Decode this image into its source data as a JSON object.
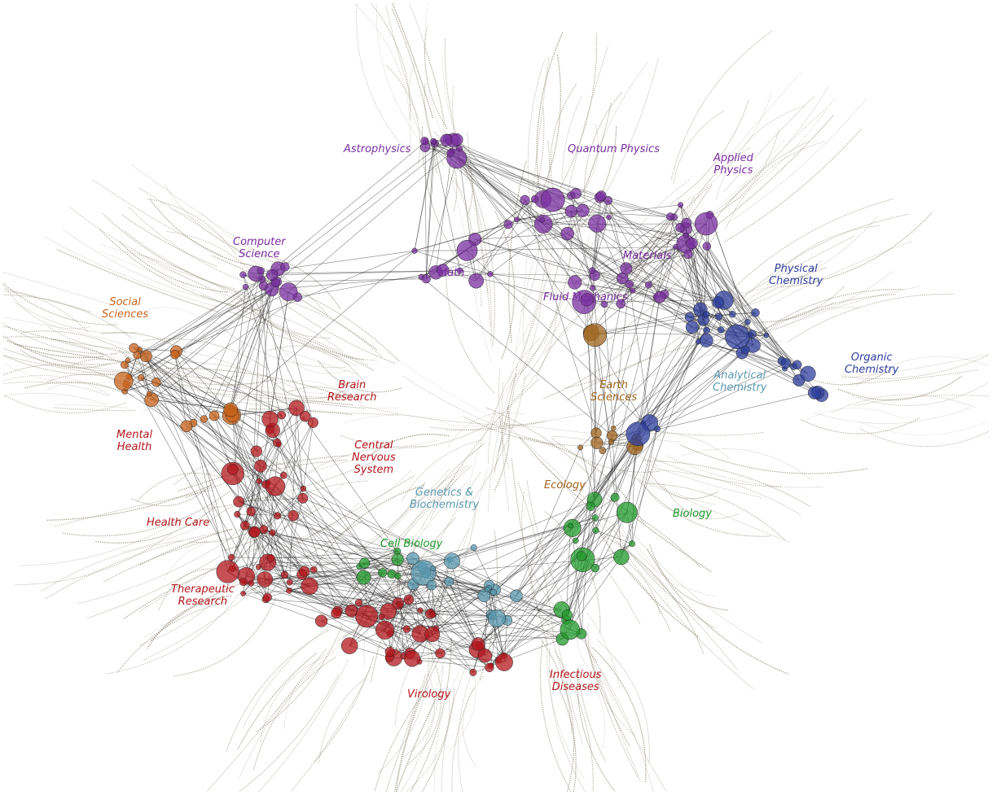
{
  "labels": {
    "astrophysics": "Astrophysics",
    "quantum_physics": "Quantum Physics",
    "applied_physics": "Applied\nPhysics",
    "computer_science": "Computer\nScience",
    "math": "Math",
    "materials": "Materials",
    "fluid_mechanics": "Fluid Mechanics",
    "physical_chemistry": "Physical\nChemistry",
    "organic_chemistry": "Organic\nChemistry",
    "social_sciences": "Social\nSciences",
    "brain_research": "Brain\nResearch",
    "earth_sciences": "Earth\nSciences",
    "analytical_chemistry": "Analytical\nChemistry",
    "mental_health": "Mental\nHealth",
    "central_nervous_system": "Central\nNervous\nSystem",
    "genetics_biochemistry": "Genetics &\nBiochemistry",
    "ecology": "Ecology",
    "biology": "Biology",
    "health_care": "Health Care",
    "cell_biology": "Cell Biology",
    "therapeutic_research": "Therapeutic\nResearch",
    "infectious_diseases": "Infectious\nDiseases",
    "virology": "Virology"
  },
  "colors": {
    "physics": "#7a2fa0",
    "chemistry": "#2e3f9e",
    "social": "#c8621a",
    "medical": "#b3171c",
    "biology": "#1f9a2a",
    "genetics": "#5a9ab0",
    "earth": "#a0661f",
    "fibers": "#8a7f6a",
    "links": "#1a1a1a"
  }
}
